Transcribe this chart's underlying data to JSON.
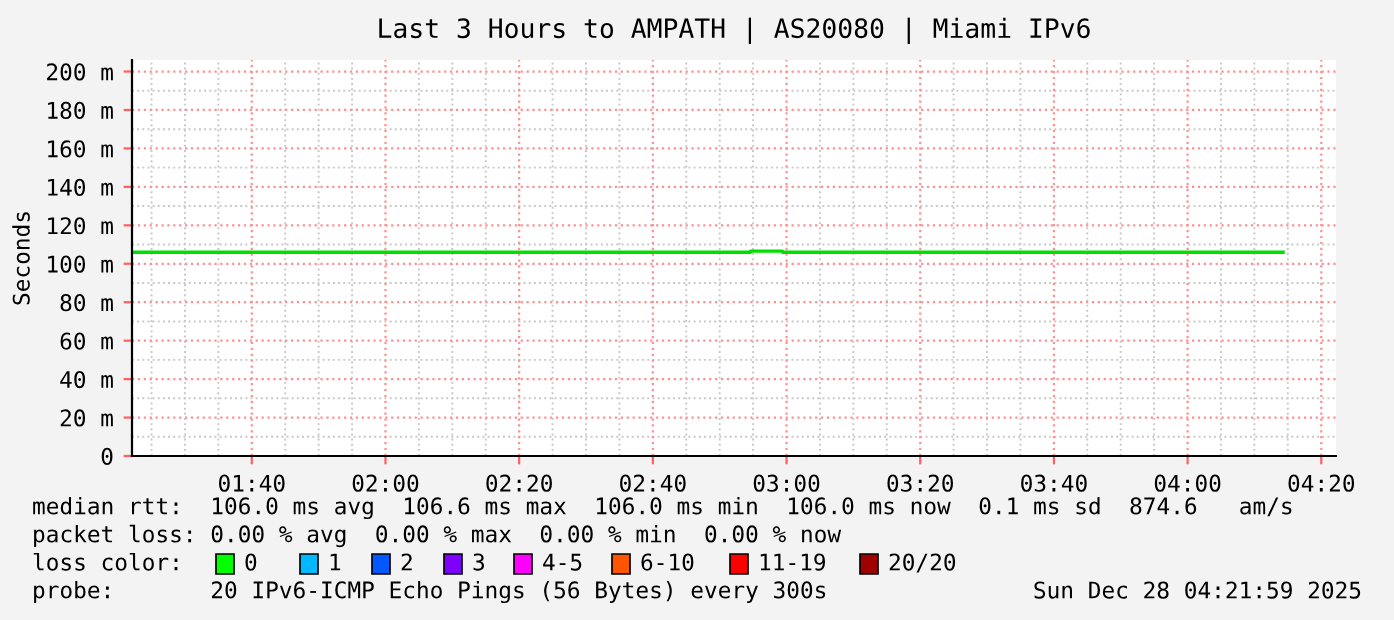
{
  "chart_data": {
    "type": "step",
    "title": "Last 3 Hours to AMPATH | AS20080 | Miami IPv6",
    "ylabel": "Seconds",
    "x": [
      1.368,
      2.91,
      2.99,
      4.238
    ],
    "series": [
      {
        "color": "#00e000",
        "values": [
          106,
          106.6,
          106,
          106
        ]
      }
    ],
    "xlim": [
      1.368,
      4.37
    ],
    "xticks": [
      {
        "value": 1.6667,
        "label": "01:40"
      },
      {
        "value": 2,
        "label": "02:00"
      },
      {
        "value": 2.3333,
        "label": "02:20"
      },
      {
        "value": 2.6667,
        "label": "02:40"
      },
      {
        "value": 3,
        "label": "03:00"
      },
      {
        "value": 3.3333,
        "label": "03:20"
      },
      {
        "value": 3.6667,
        "label": "03:40"
      },
      {
        "value": 4,
        "label": "04:00"
      },
      {
        "value": 4.3333,
        "label": "04:20"
      }
    ],
    "ylim": [
      0,
      206
    ],
    "yticks": [
      {
        "value": 0,
        "label": "0"
      },
      {
        "value": 20,
        "label": "20 m"
      },
      {
        "value": 40,
        "label": "40 m"
      },
      {
        "value": 60,
        "label": "60 m"
      },
      {
        "value": 80,
        "label": "80 m"
      },
      {
        "value": 100,
        "label": "100 m"
      },
      {
        "value": 120,
        "label": "120 m"
      },
      {
        "value": 140,
        "label": "140 m"
      },
      {
        "value": 160,
        "label": "160 m"
      },
      {
        "value": 180,
        "label": "180 m"
      },
      {
        "value": 200,
        "label": "200 m"
      }
    ],
    "grid": true,
    "line_style": "solid",
    "marker": "none",
    "annotations": [
      "median rtt:  106.0 ms avg  106.6 ms max  106.0 ms min  106.0 ms now  0.1 ms sd  874.6   am/s",
      "packet loss: 0.00 % avg  0.00 % max  0.00 % min  0.00 % now",
      "loss color:",
      "0",
      "1",
      "2",
      "3",
      "4-5",
      "6-10",
      "11-19",
      "20/20",
      "probe:       20 IPv6-ICMP Echo Pings (56 Bytes) every 300s",
      "Sun Dec 28 04:21:59 2025"
    ]
  }
}
